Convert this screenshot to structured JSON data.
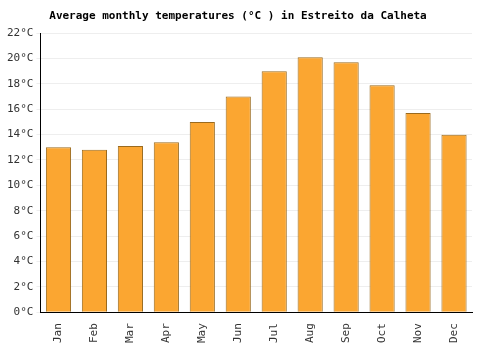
{
  "chart_data": {
    "type": "bar",
    "title": "Average monthly temperatures (°C ) in Estreito da Calheta",
    "categories": [
      "Jan",
      "Feb",
      "Mar",
      "Apr",
      "May",
      "Jun",
      "Jul",
      "Aug",
      "Sep",
      "Oct",
      "Nov",
      "Dec"
    ],
    "values": [
      13.0,
      12.8,
      13.1,
      13.4,
      15.0,
      17.0,
      19.0,
      20.1,
      19.7,
      17.9,
      15.7,
      14.0
    ],
    "color": "#fba631",
    "ylim": [
      0,
      22
    ],
    "yticks": [
      {
        "value": 0,
        "label": "0°C"
      },
      {
        "value": 2,
        "label": "2°C"
      },
      {
        "value": 4,
        "label": "4°C"
      },
      {
        "value": 6,
        "label": "6°C"
      },
      {
        "value": 8,
        "label": "8°C"
      },
      {
        "value": 10,
        "label": "10°C"
      },
      {
        "value": 12,
        "label": "12°C"
      },
      {
        "value": 14,
        "label": "14°C"
      },
      {
        "value": 16,
        "label": "16°C"
      },
      {
        "value": 18,
        "label": "18°C"
      },
      {
        "value": 20,
        "label": "20°C"
      },
      {
        "value": 22,
        "label": "22°C"
      }
    ],
    "grid": true
  }
}
